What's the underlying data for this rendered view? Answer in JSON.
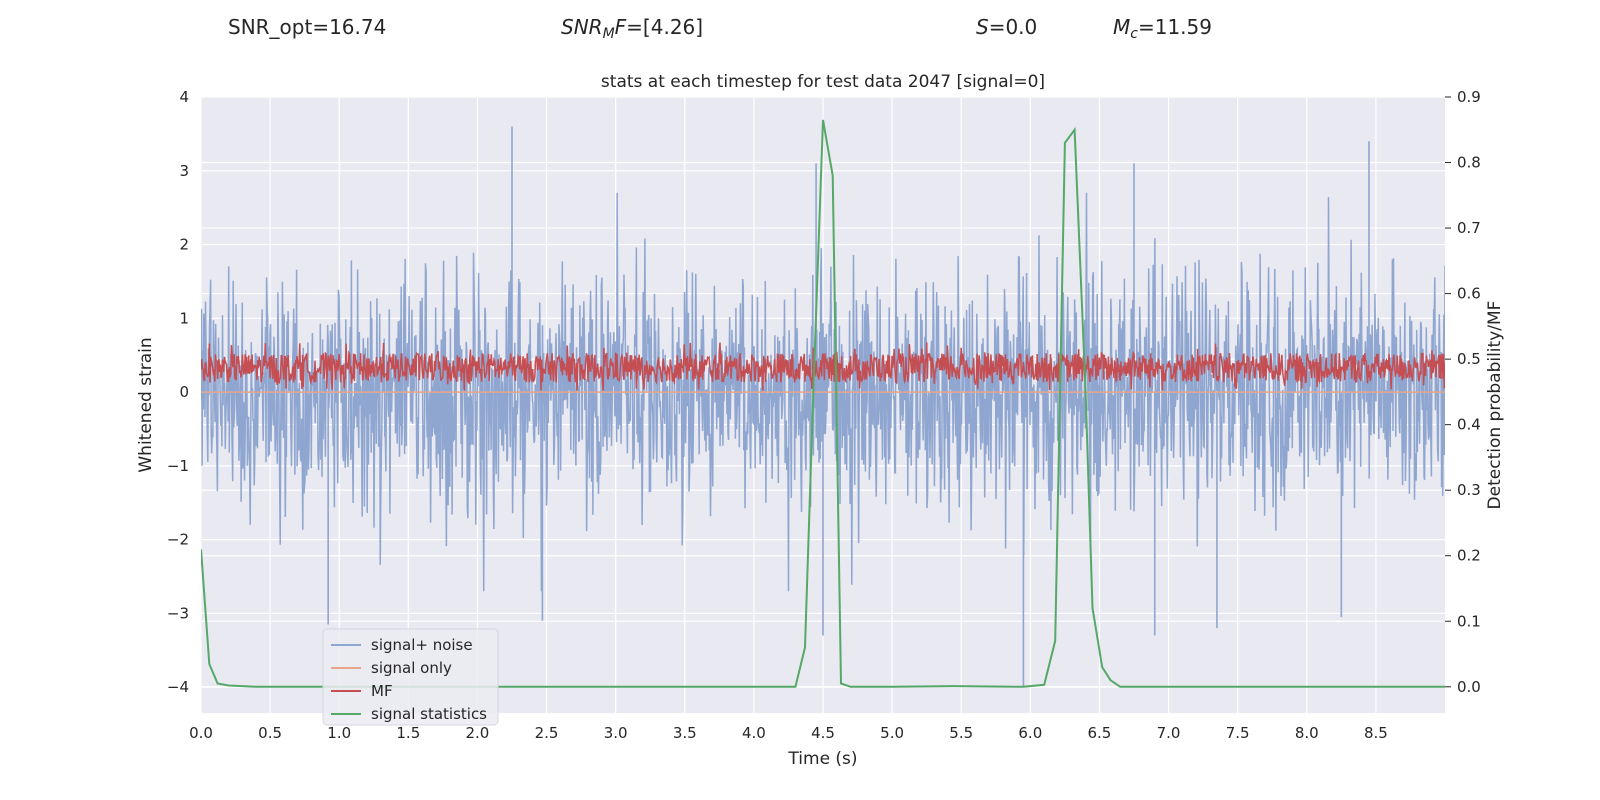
{
  "header": {
    "snr_opt": "SNR_opt=16.74",
    "snr_mf_name": "SNR",
    "snr_mf_sub": "M",
    "snr_mf_tail": "F",
    "snr_mf_value": "=[4.26]",
    "s_name": "S",
    "s_value": "=0.0",
    "mc_name": "M",
    "mc_sub": "c",
    "mc_value": "=11.59"
  },
  "chart_data": {
    "type": "line",
    "title": "stats at each timestep for test data 2047 [signal=0]",
    "xlabel": "Time (s)",
    "ylabel": "Whitened strain",
    "ylabel_right": "Detection probability/MF",
    "xlim": [
      0,
      9.0
    ],
    "ylim": [
      -4.35,
      4.0
    ],
    "ylim_right": [
      -0.04,
      0.9
    ],
    "x_ticks": [
      0.0,
      0.5,
      1.0,
      1.5,
      2.0,
      2.5,
      3.0,
      3.5,
      4.0,
      4.5,
      5.0,
      5.5,
      6.0,
      6.5,
      7.0,
      7.5,
      8.0,
      8.5
    ],
    "x_tick_labels": [
      "0.0",
      "0.5",
      "1.0",
      "1.5",
      "2.0",
      "2.5",
      "3.0",
      "3.5",
      "4.0",
      "4.5",
      "5.0",
      "5.5",
      "6.0",
      "6.5",
      "7.0",
      "7.5",
      "8.0",
      "8.5"
    ],
    "y_ticks": [
      4,
      3,
      2,
      1,
      0,
      -1,
      -2,
      -3,
      -4
    ],
    "y_tick_labels": [
      "4",
      "3",
      "2",
      "1",
      "0",
      "−1",
      "−2",
      "−3",
      "−4"
    ],
    "y_ticks_right": [
      0.9,
      0.8,
      0.7,
      0.6,
      0.5,
      0.4,
      0.3,
      0.2,
      0.1,
      0.0
    ],
    "y_tick_labels_right": [
      "0.9",
      "0.8",
      "0.7",
      "0.6",
      "0.5",
      "0.4",
      "0.3",
      "0.2",
      "0.1",
      "0.0"
    ],
    "noise_series": {
      "name": "signal+ noise",
      "color": "#8fa6d0",
      "band_sigma": 0.8,
      "peaks": [
        [
          2.25,
          3.6
        ],
        [
          4.45,
          3.1
        ],
        [
          4.5,
          -3.3
        ],
        [
          5.95,
          -4.0
        ],
        [
          8.45,
          3.4
        ],
        [
          0.92,
          -3.15
        ],
        [
          2.47,
          -3.1
        ],
        [
          6.9,
          -3.3
        ],
        [
          8.25,
          -3.05
        ],
        [
          6.75,
          3.1
        ],
        [
          7.35,
          -3.2
        ]
      ]
    },
    "signal_only_series": {
      "name": "signal only",
      "color": "#e8a58a",
      "value": 0.0
    },
    "mf_series": {
      "name": "MF",
      "color": "#c44e52",
      "center": 0.35,
      "spread": 0.2
    },
    "statistics_series": {
      "name": "signal statistics",
      "color": "#55a868",
      "axis": "right",
      "x": [
        0.0,
        0.06,
        0.12,
        0.2,
        0.3,
        0.4,
        0.5,
        1.0,
        2.0,
        3.0,
        4.0,
        4.3,
        4.37,
        4.43,
        4.5,
        4.57,
        4.63,
        4.7,
        5.0,
        5.45,
        5.95,
        6.1,
        6.18,
        6.25,
        6.32,
        6.4,
        6.45,
        6.52,
        6.58,
        6.65,
        7.0,
        8.0,
        9.0
      ],
      "y": [
        0.21,
        0.035,
        0.005,
        0.002,
        0.001,
        0.0,
        0.0,
        0.0,
        0.0,
        0.0,
        0.0,
        0.0,
        0.06,
        0.45,
        0.865,
        0.78,
        0.005,
        0.0,
        0.0,
        0.001,
        0.0,
        0.003,
        0.07,
        0.83,
        0.85,
        0.45,
        0.12,
        0.03,
        0.01,
        0.0,
        0.0,
        0.0,
        0.0
      ]
    },
    "legend": {
      "location": "lower-left",
      "entries": [
        "signal+ noise",
        "signal only",
        "MF",
        "signal statistics"
      ]
    },
    "colors": {
      "plot_bg": "#e9e9f1",
      "grid": "#ffffff",
      "text": "#262626"
    }
  }
}
